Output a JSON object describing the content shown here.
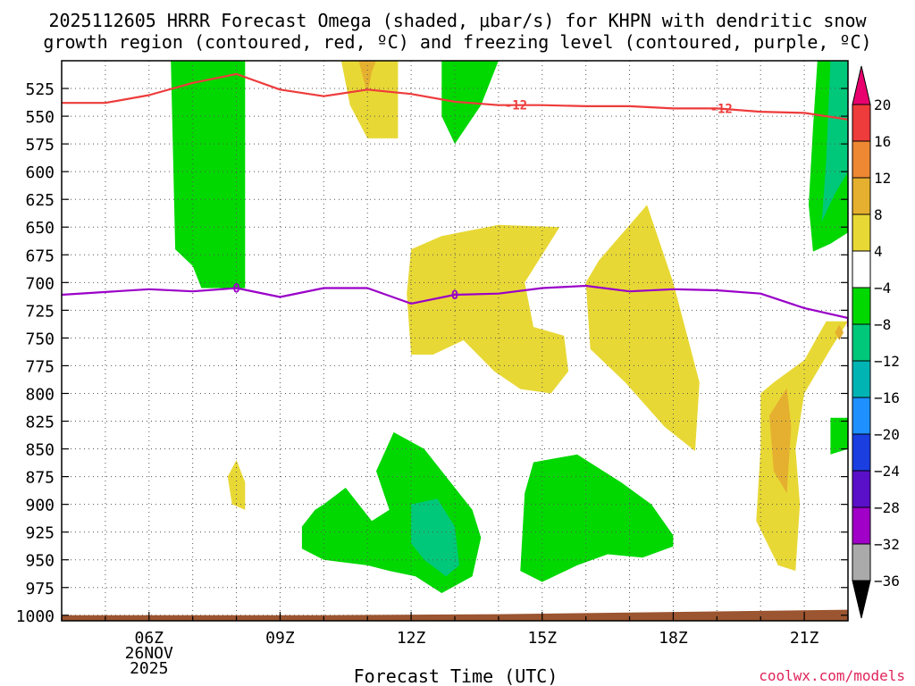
{
  "chart_data": {
    "type": "heatmap",
    "title_line1": "2025112605 HRRR Forecast Omega (shaded, μbar/s) for KHPN with dendritic snow",
    "title_line2": "growth region (contoured, red, ºC) and freezing level (contoured, purple, ºC)",
    "xlabel": "Forecast Time (UTC)",
    "credit": "coolwx.com/models",
    "x_range": [
      4.0,
      22.0
    ],
    "y_range": [
      1005,
      500
    ],
    "x_ticks": [
      {
        "x": 6,
        "label": "06Z",
        "sub1": "26NOV",
        "sub2": "2025"
      },
      {
        "x": 9,
        "label": "09Z"
      },
      {
        "x": 12,
        "label": "12Z"
      },
      {
        "x": 15,
        "label": "15Z"
      },
      {
        "x": 18,
        "label": "18Z"
      },
      {
        "x": 21,
        "label": "21Z"
      }
    ],
    "y_ticks": [
      525,
      550,
      575,
      600,
      625,
      650,
      675,
      700,
      725,
      750,
      775,
      800,
      825,
      850,
      875,
      900,
      925,
      950,
      975,
      1000
    ],
    "y_tick_labels": [
      "525",
      "550",
      "575",
      "600",
      "625",
      "650",
      "675",
      "700",
      "725",
      "750",
      "775",
      "800",
      "825",
      "850",
      "875",
      "900",
      "925",
      "950",
      "975",
      "1000"
    ],
    "colorbar": {
      "labels": [
        "20",
        "16",
        "12",
        "8",
        "4",
        "−4",
        "−8",
        "−12",
        "−16",
        "−20",
        "−24",
        "−28",
        "−32",
        "−36"
      ],
      "colors": [
        "#e8006e",
        "#ee3b3b",
        "#ee8833",
        "#e5b030",
        "#e8d835",
        "#ffffff",
        "#00d800",
        "#00c87a",
        "#00b4b4",
        "#1e90ff",
        "#1a3ee0",
        "#5a10c8",
        "#a000c8",
        "#aaaaaa",
        "#000000"
      ]
    },
    "ground_color": "#9b5530",
    "contours": [
      {
        "name": "dendritic-12C",
        "color": "#ee3b3b",
        "label": "-12",
        "points": [
          [
            4.0,
            538
          ],
          [
            5.0,
            538
          ],
          [
            6.0,
            531
          ],
          [
            7.0,
            520
          ],
          [
            8.0,
            512
          ],
          [
            9.0,
            526
          ],
          [
            10.0,
            532
          ],
          [
            11.0,
            526
          ],
          [
            12.0,
            530
          ],
          [
            13.0,
            537
          ],
          [
            14.0,
            540
          ],
          [
            15.0,
            540
          ],
          [
            16.0,
            541
          ],
          [
            17.0,
            541
          ],
          [
            18.0,
            543
          ],
          [
            19.0,
            543
          ],
          [
            20.0,
            546
          ],
          [
            21.0,
            547
          ],
          [
            22.0,
            553
          ]
        ],
        "label_points": [
          [
            14.4,
            540
          ],
          [
            19.1,
            543
          ]
        ]
      },
      {
        "name": "freezing-level-0C",
        "color": "#9a00c8",
        "label": "0",
        "points": [
          [
            4.0,
            711
          ],
          [
            6.0,
            706
          ],
          [
            7.0,
            708
          ],
          [
            8.0,
            705
          ],
          [
            9.0,
            713
          ],
          [
            10.0,
            705
          ],
          [
            11.0,
            705
          ],
          [
            12.0,
            719
          ],
          [
            13.0,
            711
          ],
          [
            14.0,
            710
          ],
          [
            15.0,
            705
          ],
          [
            16.0,
            703
          ],
          [
            17.0,
            708
          ],
          [
            18.0,
            706
          ],
          [
            19.0,
            707
          ],
          [
            20.0,
            710
          ],
          [
            21.0,
            723
          ],
          [
            22.0,
            732
          ],
          [
            22.0,
            740
          ]
        ],
        "label_points": [
          [
            8.0,
            705
          ],
          [
            13.0,
            711
          ]
        ]
      }
    ],
    "omega_regions": [
      {
        "name": "green-neg4-col06z",
        "color": "#00d800",
        "points": [
          [
            6.5,
            500
          ],
          [
            8.2,
            500
          ],
          [
            8.2,
            705
          ],
          [
            7.2,
            705
          ],
          [
            7.0,
            685
          ],
          [
            6.6,
            670
          ]
        ]
      },
      {
        "name": "yellow-pos4-top11z",
        "color": "#e8d835",
        "points": [
          [
            10.4,
            500
          ],
          [
            11.7,
            500
          ],
          [
            11.7,
            570
          ],
          [
            11.0,
            570
          ],
          [
            10.6,
            540
          ]
        ]
      },
      {
        "name": "orange-pos8-top11z",
        "color": "#e5b030",
        "points": [
          [
            10.8,
            500
          ],
          [
            11.2,
            500
          ],
          [
            11.1,
            510
          ],
          [
            11.0,
            530
          ]
        ]
      },
      {
        "name": "green-neg4-top13z",
        "color": "#00d800",
        "points": [
          [
            12.7,
            500
          ],
          [
            14.0,
            500
          ],
          [
            13.6,
            540
          ],
          [
            13.0,
            575
          ],
          [
            12.7,
            550
          ]
        ]
      },
      {
        "name": "green-neg4-right21z",
        "color": "#00d800",
        "points": [
          [
            21.3,
            500
          ],
          [
            22.0,
            500
          ],
          [
            22.0,
            655
          ],
          [
            21.6,
            665
          ],
          [
            21.2,
            672
          ],
          [
            21.1,
            630
          ],
          [
            21.2,
            560
          ]
        ]
      },
      {
        "name": "teal-neg8-right21z",
        "color": "#00c87a",
        "points": [
          [
            21.6,
            500
          ],
          [
            22.0,
            500
          ],
          [
            22.0,
            600
          ],
          [
            21.7,
            620
          ],
          [
            21.4,
            645
          ],
          [
            21.5,
            590
          ]
        ]
      },
      {
        "name": "yellow-pos4-mid12z",
        "color": "#e8d835",
        "points": [
          [
            12.0,
            670
          ],
          [
            12.7,
            658
          ],
          [
            14.0,
            648
          ],
          [
            15.4,
            650
          ],
          [
            14.6,
            700
          ],
          [
            14.8,
            740
          ],
          [
            15.5,
            748
          ],
          [
            15.6,
            780
          ],
          [
            15.2,
            800
          ],
          [
            14.5,
            796
          ],
          [
            13.9,
            780
          ],
          [
            13.2,
            752
          ],
          [
            12.5,
            765
          ],
          [
            12.0,
            765
          ],
          [
            11.9,
            710
          ]
        ]
      },
      {
        "name": "yellow-pos4-mid17z",
        "color": "#e8d835",
        "points": [
          [
            17.4,
            630
          ],
          [
            18.0,
            700
          ],
          [
            18.6,
            790
          ],
          [
            18.5,
            852
          ],
          [
            17.8,
            830
          ],
          [
            16.9,
            790
          ],
          [
            16.1,
            760
          ],
          [
            16.0,
            700
          ],
          [
            16.3,
            680
          ]
        ]
      },
      {
        "name": "yellow-pos4-right20z",
        "color": "#e8d835",
        "points": [
          [
            20.3,
            790
          ],
          [
            21.0,
            770
          ],
          [
            21.5,
            735
          ],
          [
            22.0,
            735
          ],
          [
            21.6,
            760
          ],
          [
            21.3,
            780
          ],
          [
            21.0,
            800
          ],
          [
            20.8,
            850
          ],
          [
            20.9,
            900
          ],
          [
            20.8,
            960
          ],
          [
            20.4,
            955
          ],
          [
            19.9,
            915
          ],
          [
            20.0,
            850
          ],
          [
            20.0,
            800
          ]
        ]
      },
      {
        "name": "orange-pos8-right21z",
        "color": "#e5b030",
        "points": [
          [
            20.6,
            795
          ],
          [
            20.7,
            830
          ],
          [
            20.6,
            890
          ],
          [
            20.3,
            870
          ],
          [
            20.2,
            820
          ]
        ]
      },
      {
        "name": "orange-pos8-small22z",
        "color": "#e5b030",
        "points": [
          [
            21.8,
            738
          ],
          [
            21.9,
            745
          ],
          [
            21.8,
            752
          ],
          [
            21.7,
            745
          ]
        ]
      },
      {
        "name": "green-neg4-small22z",
        "color": "#00d800",
        "points": [
          [
            21.6,
            822
          ],
          [
            22.0,
            822
          ],
          [
            22.0,
            850
          ],
          [
            21.6,
            855
          ]
        ]
      },
      {
        "name": "yellow-pos4-small08z",
        "color": "#e8d835",
        "points": [
          [
            7.8,
            875
          ],
          [
            8.0,
            860
          ],
          [
            8.2,
            880
          ],
          [
            8.2,
            905
          ],
          [
            7.9,
            900
          ]
        ]
      },
      {
        "name": "green-neg4-low10z",
        "color": "#00d800",
        "points": [
          [
            10.0,
            900
          ],
          [
            10.5,
            885
          ],
          [
            11.1,
            915
          ],
          [
            11.5,
            905
          ],
          [
            11.2,
            870
          ],
          [
            11.6,
            835
          ],
          [
            12.3,
            850
          ],
          [
            12.7,
            870
          ],
          [
            13.4,
            905
          ],
          [
            13.6,
            930
          ],
          [
            13.4,
            965
          ],
          [
            12.7,
            980
          ],
          [
            12.1,
            965
          ],
          [
            11.5,
            960
          ],
          [
            11.0,
            955
          ],
          [
            10.0,
            950
          ],
          [
            9.5,
            940
          ],
          [
            9.5,
            920
          ],
          [
            9.8,
            905
          ]
        ]
      },
      {
        "name": "teal-neg8-low13z",
        "color": "#00c87a",
        "points": [
          [
            12.0,
            900
          ],
          [
            12.6,
            895
          ],
          [
            13.0,
            920
          ],
          [
            13.1,
            955
          ],
          [
            12.8,
            965
          ],
          [
            12.3,
            950
          ],
          [
            12.0,
            935
          ]
        ]
      },
      {
        "name": "green-neg4-low15z",
        "color": "#00d800",
        "points": [
          [
            14.8,
            862
          ],
          [
            15.8,
            855
          ],
          [
            16.8,
            880
          ],
          [
            17.5,
            900
          ],
          [
            18.0,
            928
          ],
          [
            18.0,
            938
          ],
          [
            17.3,
            948
          ],
          [
            16.5,
            945
          ],
          [
            15.8,
            955
          ],
          [
            15.0,
            970
          ],
          [
            14.5,
            960
          ],
          [
            14.6,
            890
          ]
        ]
      }
    ]
  }
}
